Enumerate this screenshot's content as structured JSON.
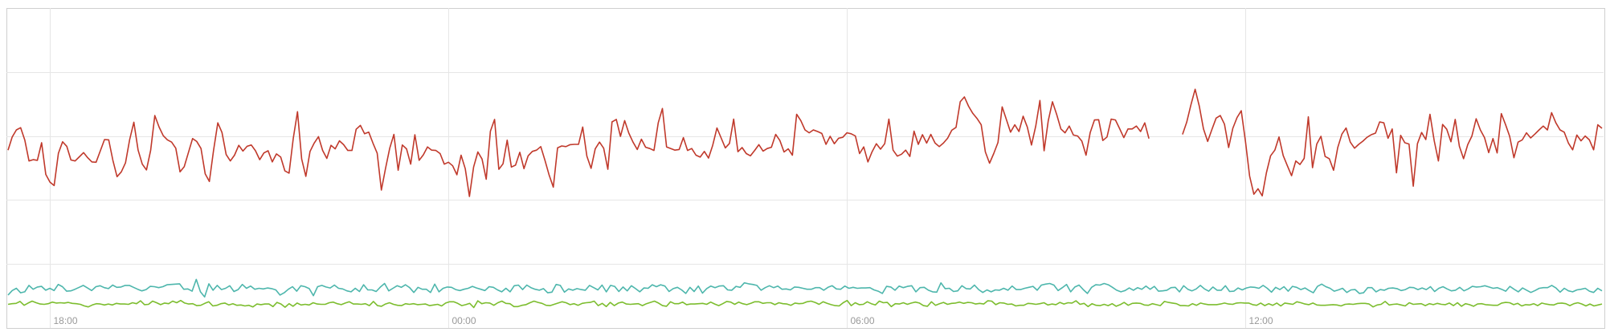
{
  "chart_data": {
    "type": "line",
    "title": "",
    "xlabel": "",
    "ylabel": "",
    "x_tick_labels": [
      "18:00",
      "00:00",
      "06:00",
      "12:00"
    ],
    "x_tick_hours": [
      18,
      24,
      30,
      36
    ],
    "x_range_hours": [
      17.35,
      41.4
    ],
    "y_range": [
      0,
      100
    ],
    "y_gridlines": [
      20,
      40,
      60,
      80
    ],
    "grid": true,
    "legend": "none",
    "series": [
      {
        "color": "#c0392b",
        "values": [
          55.6,
          59.7,
          61.9,
          62.6,
          58.7,
          52.2,
          52.6,
          52.4,
          57.9,
          48.0,
          45.6,
          44.5,
          54.6,
          58.2,
          56.8,
          52.5,
          52.2,
          53.5,
          54.8,
          53.2,
          51.9,
          51.8,
          55.4,
          58.9,
          58.8,
          52.4,
          47.3,
          48.8,
          51.6,
          58.9,
          64.3,
          55.6,
          51.2,
          49.4,
          55.5,
          66.4,
          62.8,
          60.1,
          58.8,
          58.1,
          56.2,
          48.8,
          50.4,
          54.8,
          59.2,
          58.3,
          56.1,
          48.2,
          45.8,
          55.5,
          64.1,
          61.1,
          54.2,
          52.2,
          54.0,
          57.1,
          55.3,
          56.8,
          57.2,
          55.4,
          52.6,
          54.7,
          55.4,
          51.9,
          54.4,
          53.4,
          49.1,
          48.4,
          59.2,
          67.6,
          52.8,
          47.4,
          55.2,
          57.8,
          59.8,
          55.5,
          53.0,
          57.1,
          56.0,
          58.5,
          57.3,
          55.5,
          55.5,
          62.1,
          63.3,
          60.7,
          61.2,
          57.8,
          54.6,
          43.1,
          49.9,
          56.2,
          60.5,
          49.3,
          57.2,
          56.0,
          51.2,
          60.4,
          52.4,
          54.1,
          56.6,
          55.6,
          55.5,
          54.5,
          51.2,
          51.8,
          50.7,
          47.9,
          54.0,
          49.8,
          41.1,
          50.3,
          55.0,
          52.8,
          46.5,
          61.5,
          65.2,
          49.6,
          51.3,
          58.7,
          50.3,
          50.9,
          54.9,
          49.8,
          53.8,
          55.2,
          55.6,
          56.7,
          52.4,
          47.8,
          44.0,
          56.3,
          56.9,
          56.7,
          57.3,
          57.4,
          57.4,
          62.8,
          53.7,
          49.9,
          56.0,
          58.1,
          56.2,
          49.6,
          64.4,
          65.2,
          59.9,
          64.8,
          60.9,
          58.1,
          55.8,
          59.0,
          56.5,
          56.1,
          55.5,
          64.1,
          68.6,
          56.6,
          56.1,
          55.6,
          55.8,
          59.5,
          55.5,
          56.1,
          54.0,
          53.4,
          55.2,
          53.1,
          57.1,
          62.5,
          59.4,
          56.3,
          57.7,
          65.3,
          55.1,
          56.4,
          54.5,
          53.8,
          55.5,
          57.3,
          55.3,
          56.1,
          56.5,
          60.5,
          58.6,
          55.0,
          56.0,
          54.0,
          66.8,
          64.8,
          61.9,
          61.0,
          61.9,
          61.4,
          60.8,
          57.4,
          59.9,
          57.6,
          59.3,
          59.6,
          61.0,
          60.7,
          60.0,
          54.5,
          56.6,
          51.9,
          55.1,
          57.6,
          55.9,
          57.6,
          65.3,
          55.6,
          53.7,
          54.3,
          55.6,
          53.6,
          61.5,
          57.4,
          60.4,
          57.8,
          60.5,
          57.8,
          56.7,
          57.8,
          59.3,
          61.8,
          62.7,
          70.7,
          72.2,
          69.3,
          67.1,
          65.5,
          63.5,
          55.0,
          51.5,
          54.5,
          58.0,
          69.1,
          65.2,
          61.2,
          63.5,
          61.4,
          66.2,
          62.8,
          57.2,
          63.1,
          71.1,
          55.4,
          64.8,
          70.7,
          66.7,
          62.2,
          61.0,
          63.1,
          60.3,
          60.0,
          58.4,
          54.0,
          61.1,
          65.0,
          65.1,
          58.6,
          59.7,
          65.3,
          65.0,
          62.3,
          59.5,
          62.2,
          62.2,
          63.1,
          61.4,
          64.1,
          59.2,
          null,
          null,
          null,
          null,
          null,
          null,
          null,
          60.5,
          64.3,
          69.7,
          74.6,
          69.3,
          62.2,
          58.3,
          62.0,
          65.6,
          66.4,
          63.7,
          56.4,
          62.4,
          65.8,
          67.9,
          58.4,
          47.5,
          41.8,
          43.5,
          41.3,
          48.5,
          53.8,
          55.6,
          59.7,
          53.9,
          50.7,
          47.6,
          52.2,
          51.1,
          53.0,
          66.0,
          50.1,
          57.5,
          59.9,
          53.6,
          52.9,
          49.3,
          56.4,
          60.6,
          62.5,
          58.1,
          56.2,
          57.4,
          58.4,
          59.6,
          60.4,
          60.9,
          64.4,
          64.1,
          59.3,
          62.2,
          48.5,
          60.2,
          57.9,
          57.5,
          44.3,
          57.6,
          61.1,
          58.9,
          66.8,
          58.5,
          52.2,
          63.6,
          62.1,
          58.2,
          65.2,
          56.8,
          52.9,
          57.3,
          60.0,
          65.4,
          61.9,
          59.5,
          54.8,
          59.2,
          54.7,
          67.0,
          63.6,
          59.9,
          53.2,
          58.1,
          58.8,
          61.0,
          59.4,
          60.6,
          61.9,
          63.1,
          61.9,
          67.3,
          64.1,
          61.9,
          61.2,
          57.8,
          55.7,
          60.3,
          58.5,
          60.0,
          58.8,
          55.7,
          63.5,
          62.4
        ]
      },
      {
        "color": "#4db6ac",
        "values": [
          10.3,
          11.7,
          12.4,
          11.0,
          11.3,
          13.3,
          12.1,
          12.8,
          13.0,
          11.8,
          12.4,
          11.7,
          13.6,
          12.9,
          11.5,
          11.6,
          12.1,
          12.7,
          13.3,
          12.5,
          11.7,
          12.9,
          13.2,
          12.6,
          12.3,
          13.4,
          12.7,
          12.8,
          13.3,
          13.3,
          12.7,
          12.1,
          11.6,
          12.0,
          13.0,
          12.9,
          12.6,
          12.9,
          13.5,
          13.6,
          13.7,
          13.8,
          12.1,
          12.2,
          11.5,
          15.2,
          11.3,
          9.7,
          13.8,
          11.8,
          13.3,
          12.0,
          12.4,
          13.2,
          11.4,
          12.0,
          13.6,
          12.4,
          13.1,
          12.1,
          12.4,
          12.2,
          12.5,
          12.3,
          11.9,
          10.3,
          11.0,
          12.1,
          12.9,
          11.5,
          13.2,
          12.9,
          12.3,
          10.1,
          12.9,
          13.3,
          12.8,
          12.5,
          13.4,
          12.4,
          12.2,
          11.6,
          11.3,
          12.4,
          11.4,
          13.5,
          11.9,
          11.9,
          11.4,
          12.8,
          13.9,
          11.6,
          12.4,
          13.2,
          12.7,
          13.5,
          12.6,
          11.1,
          12.7,
          12.1,
          12.1,
          11.1,
          13.7,
          11.3,
          12.4,
          12.8,
          12.7,
          12.0,
          11.7,
          12.1,
          12.4,
          13.0,
          12.5,
          12.1,
          11.7,
          12.9,
          12.7,
          11.9,
          11.3,
          12.4,
          11.3,
          13.2,
          13.4,
          12.0,
          13.4,
          12.6,
          12.1,
          11.8,
          12.3,
          11.0,
          11.2,
          13.6,
          13.3,
          11.2,
          12.2,
          11.8,
          12.3,
          12.0,
          11.8,
          13.3,
          12.6,
          11.9,
          13.4,
          11.3,
          13.3,
          13.0,
          11.4,
          12.8,
          11.6,
          13.2,
          12.3,
          11.3,
          12.5,
          12.4,
          13.5,
          12.9,
          13.5,
          13.1,
          11.4,
          12.3,
          12.7,
          11.9,
          10.8,
          12.7,
          11.4,
          13.1,
          10.9,
          12.3,
          13.1,
          12.6,
          13.1,
          13.2,
          11.9,
          11.8,
          13.0,
          12.7,
          14.1,
          13.8,
          13.6,
          13.3,
          11.8,
          12.6,
          13.2,
          12.6,
          13.1,
          12.1,
          12.2,
          11.9,
          12.8,
          12.7,
          12.4,
          12.1,
          12.1,
          12.6,
          12.6,
          11.8,
          12.7,
          13.2,
          12.2,
          12.1,
          13.1,
          12.4,
          12.7,
          12.4,
          12.5,
          12.5,
          12.6,
          11.9,
          11.5,
          10.8,
          13.0,
          12.8,
          11.8,
          13.1,
          12.6,
          13.0,
          13.2,
          11.3,
          12.6,
          12.7,
          11.8,
          11.3,
          11.2,
          14.1,
          12.3,
          12.4,
          11.4,
          11.6,
          13.2,
          12.3,
          12.2,
          13.4,
          12.0,
          11.1,
          11.9,
          11.3,
          11.9,
          11.8,
          12.4,
          11.8,
          13.1,
          12.0,
          12.0,
          12.4,
          12.7,
          13.0,
          11.8,
          13.4,
          13.7,
          13.9,
          13.4,
          11.7,
          12.6,
          13.6,
          11.3,
          12.8,
          13.4,
          12.0,
          10.8,
          12.7,
          13.5,
          13.4,
          13.9,
          13.5,
          12.7,
          11.8,
          11.3,
          11.7,
          12.5,
          11.8,
          12.6,
          12.1,
          13.1,
          12.1,
          13.0,
          11.5,
          11.6,
          11.8,
          12.6,
          12.7,
          11.3,
          13.2,
          12.1,
          11.6,
          12.2,
          13.3,
          12.2,
          11.5,
          12.8,
          11.8,
          11.8,
          13.2,
          11.4,
          11.5,
          12.5,
          11.9,
          12.5,
          12.8,
          12.7,
          12.4,
          13.3,
          12.4,
          11.2,
          12.7,
          12.0,
          12.9,
          11.5,
          13.0,
          12.7,
          12.0,
          12.5,
          11.7,
          11.0,
          13.0,
          13.7,
          12.9,
          12.4,
          11.5,
          11.9,
          12.4,
          11.1,
          11.9,
          12.0,
          10.8,
          11.0,
          12.6,
          12.6,
          11.3,
          12.0,
          11.8,
          12.4,
          12.5,
          12.3,
          11.7,
          12.0,
          12.7,
          12.6,
          12.0,
          12.5,
          12.0,
          12.9,
          11.4,
          12.4,
          12.9,
          12.2,
          11.6,
          11.8,
          12.7,
          11.6,
          12.2,
          13.0,
          12.8,
          12.9,
          13.2,
          12.8,
          12.4,
          12.6,
          12.1,
          11.5,
          13.0,
          12.1,
          11.3,
          12.5,
          11.8,
          11.1,
          11.7,
          12.4,
          12.6,
          12.6,
          13.3,
          12.5,
          11.2,
          12.4,
          11.6,
          11.3,
          11.9,
          12.1,
          12.4,
          11.5,
          11.1,
          12.4,
          11.6
        ]
      },
      {
        "color": "#7cbd2e",
        "values": [
          7.4,
          7.6,
          7.7,
          8.3,
          7.1,
          7.8,
          8.4,
          7.9,
          7.5,
          7.4,
          7.6,
          8.1,
          7.8,
          7.9,
          7.8,
          8.0,
          7.7,
          7.6,
          7.4,
          6.9,
          6.6,
          7.2,
          7.6,
          7.5,
          7.2,
          7.5,
          7.2,
          7.7,
          7.5,
          7.5,
          7.4,
          7.9,
          7.6,
          8.5,
          7.3,
          7.4,
          8.4,
          7.9,
          7.3,
          7.8,
          7.6,
          8.4,
          7.9,
          8.6,
          7.8,
          7.5,
          7.6,
          7.0,
          7.1,
          7.7,
          8.2,
          6.9,
          7.1,
          7.6,
          7.8,
          7.2,
          7.6,
          7.1,
          7.2,
          6.9,
          7.1,
          6.6,
          7.5,
          7.3,
          7.5,
          7.5,
          6.7,
          8.0,
          7.5,
          6.5,
          7.6,
          6.8,
          7.8,
          7.2,
          7.4,
          7.2,
          7.9,
          7.5,
          7.4,
          7.4,
          7.9,
          8.1,
          7.6,
          7.3,
          7.8,
          8.2,
          7.5,
          7.5,
          7.4,
          7.6,
          7.0,
          8.3,
          7.0,
          6.8,
          7.5,
          7.9,
          7.4,
          7.1,
          7.0,
          7.6,
          7.4,
          7.6,
          7.3,
          7.4,
          7.5,
          7.0,
          7.2,
          7.4,
          6.9,
          7.8,
          8.2,
          8.2,
          7.7,
          7.0,
          7.3,
          7.7,
          6.4,
          8.5,
          7.6,
          7.9,
          7.8,
          7.1,
          7.9,
          8.4,
          7.7,
          7.6,
          6.7,
          6.7,
          7.1,
          7.3,
          7.9,
          8.4,
          8.0,
          7.7,
          7.1,
          7.0,
          7.4,
          7.8,
          8.2,
          7.9,
          7.3,
          7.6,
          7.1,
          7.7,
          7.9,
          8.0,
          8.4,
          7.0,
          7.7,
          6.7,
          8.0,
          7.0,
          7.8,
          8.1,
          7.5,
          7.4,
          7.5,
          7.6,
          7.0,
          7.6,
          8.0,
          8.4,
          7.8,
          7.0,
          6.8,
          8.2,
          7.6,
          7.6,
          8.1,
          7.3,
          7.5,
          7.5,
          7.6,
          7.7,
          7.4,
          8.1,
          7.5,
          7.0,
          7.6,
          8.3,
          8.1,
          7.4,
          8.1,
          7.6,
          7.3,
          7.7,
          8.2,
          8.2,
          7.7,
          7.9,
          7.9,
          7.3,
          7.9,
          7.6,
          7.5,
          7.1,
          7.8,
          7.6,
          7.7,
          8.2,
          8.4,
          8.0,
          7.4,
          8.2,
          7.7,
          7.3,
          7.0,
          6.9,
          7.9,
          8.6,
          7.0,
          7.9,
          7.3,
          7.4,
          8.2,
          7.6,
          7.2,
          8.4,
          7.9,
          8.0,
          6.7,
          7.6,
          7.5,
          7.9,
          7.4,
          7.8,
          8.1,
          7.8,
          7.0,
          6.8,
          8.2,
          7.1,
          7.6,
          8.0,
          7.4,
          7.7,
          7.8,
          8.1,
          7.7,
          8.0,
          7.9,
          7.5,
          7.7,
          7.5,
          8.5,
          8.4,
          7.3,
          7.9,
          7.8,
          7.4,
          7.5,
          6.9,
          7.1,
          7.1,
          7.7,
          7.6,
          7.4,
          7.6,
          7.9,
          7.2,
          7.5,
          7.3,
          8.0,
          7.5,
          7.9,
          7.8,
          8.5,
          7.4,
          7.7,
          6.7,
          7.6,
          7.1,
          7.0,
          7.4,
          7.0,
          7.6,
          6.8,
          7.3,
          8.0,
          7.1,
          7.7,
          7.8,
          7.7,
          7.2,
          7.1,
          7.6,
          7.3,
          7.0,
          8.3,
          8.0,
          7.8,
          7.6,
          7.0,
          7.0,
          6.9,
          7.6,
          7.1,
          7.8,
          7.5,
          7.3,
          7.3,
          7.3,
          7.5,
          7.8,
          7.5,
          7.4,
          7.8,
          7.9,
          7.8,
          7.8,
          7.3,
          7.1,
          7.8,
          7.0,
          7.6,
          7.1,
          7.8,
          6.9,
          7.8,
          7.6,
          7.4,
          8.2,
          7.9,
          7.5,
          7.3,
          7.8,
          7.2,
          7.1,
          7.1,
          7.2,
          7.3,
          7.2,
          6.9,
          7.4,
          7.5,
          7.4,
          7.6,
          7.7,
          7.7,
          7.5,
          6.6,
          7.2,
          7.4,
          8.3,
          7.2,
          7.4,
          7.5,
          7.2,
          6.9,
          7.9,
          7.4,
          7.5,
          7.6,
          7.0,
          7.6,
          7.3,
          7.7,
          7.4,
          7.3,
          7.8,
          7.0,
          7.9,
          6.8,
          7.6,
          7.3,
          6.8,
          7.5,
          7.6,
          7.3,
          7.2,
          7.1,
          7.1,
          7.8,
          8.0,
          7.9,
          7.3,
          7.7,
          6.9,
          7.3,
          7.2,
          7.6,
          7.0,
          7.8,
          7.5,
          7.3,
          7.2,
          7.7,
          7.8,
          7.6,
          7.0,
          7.6,
          7.9,
          7.5,
          6.9,
          7.5,
          6.9,
          7.2,
          7.5
        ]
      }
    ]
  }
}
